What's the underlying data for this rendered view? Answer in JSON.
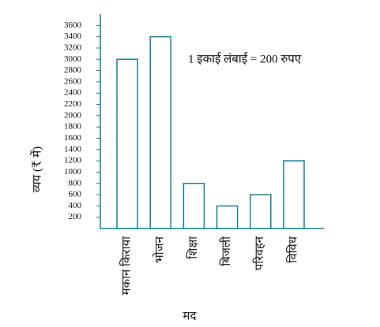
{
  "chart_data": {
    "type": "bar",
    "annotation": "1 इकाई लंबाई = 200 रुपए",
    "y_label": "व्यय (₹ में)",
    "x_label": "मद",
    "categories": [
      "मकान किराया",
      "भोजन",
      "शिक्षा",
      "बिजली",
      "परिवहन",
      "विविध"
    ],
    "values": [
      3000,
      3400,
      800,
      400,
      600,
      1200
    ],
    "color": "#1a7f9c",
    "ylim": [
      0,
      3800
    ],
    "yticks": [
      200,
      400,
      600,
      800,
      1000,
      1200,
      1400,
      1600,
      1800,
      2000,
      2200,
      2400,
      2600,
      2800,
      3000,
      3200,
      3400,
      3600
    ],
    "grid": false
  }
}
